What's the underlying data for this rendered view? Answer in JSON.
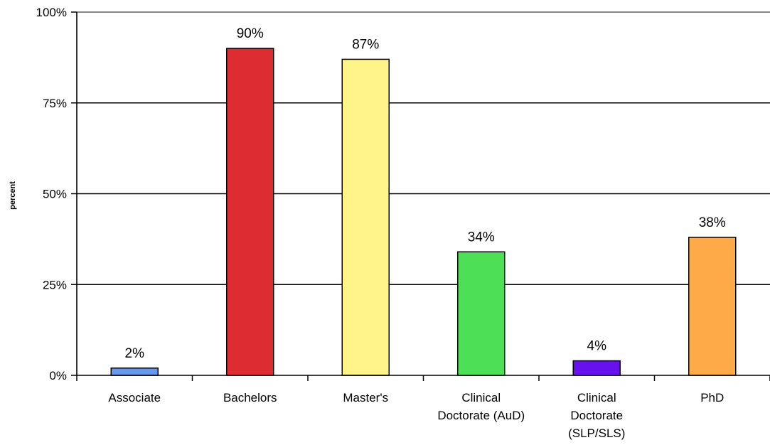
{
  "chart_data": {
    "type": "bar",
    "categories": [
      [
        "Associate"
      ],
      [
        "Bachelors"
      ],
      [
        "Master's"
      ],
      [
        "Clinical",
        "Doctorate (AuD)"
      ],
      [
        "Clinical",
        "Doctorate",
        "(SLP/SLS)"
      ],
      [
        "PhD"
      ]
    ],
    "values": [
      2,
      90,
      87,
      34,
      4,
      38
    ],
    "data_labels": [
      "2%",
      "90%",
      "87%",
      "34%",
      "4%",
      "38%"
    ],
    "colors": [
      "#6699ee",
      "#dd2d33",
      "#fff48a",
      "#4ddf55",
      "#6611ee",
      "#ffaa48"
    ],
    "ylabel": "percent",
    "ylim": [
      0,
      100
    ],
    "yticks": [
      0,
      25,
      50,
      75,
      100
    ],
    "ytick_labels": [
      "0%",
      "25%",
      "50%",
      "75%",
      "100%"
    ],
    "grid": true
  }
}
